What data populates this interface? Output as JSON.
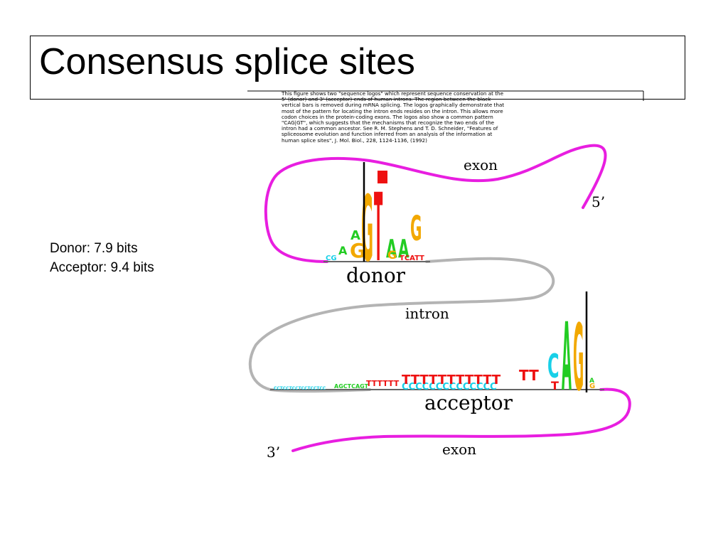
{
  "title": "Consensus splice sites",
  "stats": {
    "donor": "Donor: 7.9 bits",
    "acceptor": "Acceptor: 9.4 bits"
  },
  "figure": {
    "caption": "This figure shows two \"sequence logos\" which represent sequence conservation at the 5' (donor) and 3' (acceptor) ends of human introns. The region between the black vertical bars is removed during mRNA splicing. The logos graphically demonstrate that most of the pattern for locating the intron ends resides on the intron. This allows more codon choices in the protein-coding exons. The logos also show a common pattern \"CAG|GT\", which suggests that the mechanisms that recognize the two ends of the intron had a common ancestor. See R. M. Stephens and T. D. Schneider, \"Features of spliceosome evolution and function inferred from an analysis of the information at human splice sites\", J. Mol. Biol., 228, 1124-1136, (1992)",
    "labels": {
      "exon_top": "exon",
      "five_prime": "5’",
      "donor": "donor",
      "intron": "intron",
      "acceptor": "acceptor",
      "three_prime": "3’",
      "exon_bottom": "exon"
    },
    "colors": {
      "exon": "#e81ee0",
      "intron": "#b4b4b4",
      "A": "#22cc22",
      "C": "#18d0e8",
      "G": "#f2a800",
      "T": "#ee1111"
    }
  }
}
